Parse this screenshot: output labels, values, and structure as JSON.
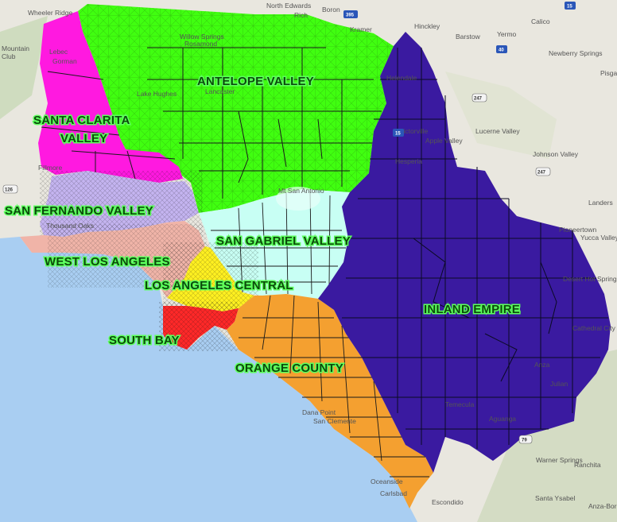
{
  "regions": [
    {
      "id": "antelope",
      "label": "ANTELOPE VALLEY",
      "color": "#40ff10"
    },
    {
      "id": "santa-clarita",
      "label_lines": [
        "SANTA CLARITA",
        "VALLEY"
      ],
      "color": "#ff19e0"
    },
    {
      "id": "san-fernando",
      "label": "SAN FERNANDO VALLEY",
      "color": "#c4b4f0"
    },
    {
      "id": "west-la",
      "label": "WEST LOS ANGELES",
      "color": "#f0b4a8"
    },
    {
      "id": "la-central",
      "label": "LOS ANGELES CENTRAL",
      "color": "#fff020"
    },
    {
      "id": "san-gabriel",
      "label": "SAN GABRIEL VALLEY",
      "color": "#c8fff4"
    },
    {
      "id": "inland-empire",
      "label": "INLAND EMPIRE",
      "color": "#3a1aa0"
    },
    {
      "id": "south-bay",
      "label": "SOUTH BAY",
      "color": "#ff2828"
    },
    {
      "id": "orange-county",
      "label": "ORANGE COUNTY",
      "color": "#f4a030"
    }
  ],
  "places": [
    "Wheeler Ridge",
    "North Edwards",
    "Boron",
    "Rich",
    "Kramer",
    "Hinckley",
    "Barstow",
    "Calico",
    "Yermo",
    "Newberry Springs",
    "Pisga",
    "Mountain",
    "Club",
    "Lebec",
    "Gorman",
    "Lake Hughes",
    "Willow Springs",
    "Rosamond",
    "Lancaster",
    "Helendale",
    "Victorville",
    "Apple Valley",
    "Hesperia",
    "Lucerne Valley",
    "Johnson Valley",
    "Fillmore",
    "Thousand Oaks",
    "Mt San Antonio",
    "Pioneertown",
    "Yucca Valley",
    "Desert Hot Springs",
    "Cathedral City",
    "Landers",
    "Anza",
    "Julian",
    "Temecula",
    "Aguanga",
    "Warner Springs",
    "Ranchita",
    "Santa Ysabel",
    "Escondido",
    "Oceanside",
    "Carlsbad",
    "San Clemente",
    "Dana Point",
    "Anza-Borrego Desert"
  ],
  "highways": [
    "395",
    "15",
    "40",
    "247",
    "247",
    "126",
    "15",
    "79"
  ],
  "colors": {
    "land": "#e9e7df",
    "ocean": "#a9cef2",
    "hills": "#cfdcbf",
    "boundary": "#1a1a1a",
    "label_text": "#0c4a0c",
    "label_halo": "#5cff5c"
  }
}
